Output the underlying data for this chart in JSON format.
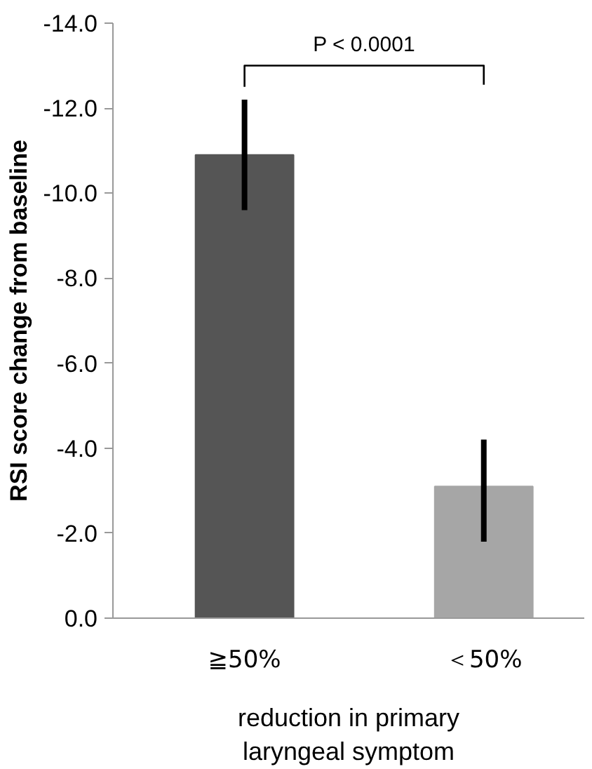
{
  "chart_data": {
    "type": "bar",
    "ylabel": "RSI score change from baseline",
    "xlabel": "reduction in primary\nlaryngeal symptom",
    "categories": [
      "≧50%",
      "＜50%"
    ],
    "values": [
      -10.9,
      -3.1
    ],
    "colors": [
      "#555555",
      "#a6a6a6"
    ],
    "errors": [
      [
        -12.2,
        -9.6
      ],
      [
        -4.2,
        -1.8
      ]
    ],
    "ylim": [
      0,
      -14
    ],
    "yticks": [
      {
        "value": 0,
        "label": "0.0"
      },
      {
        "value": -2,
        "label": "-2.0"
      },
      {
        "value": -4,
        "label": "-4.0"
      },
      {
        "value": -6,
        "label": "-6.0"
      },
      {
        "value": -8,
        "label": "-8.0"
      },
      {
        "value": -10,
        "label": "-10.0"
      },
      {
        "value": -12,
        "label": "-12.0"
      },
      {
        "value": -14,
        "label": "-14.0"
      }
    ],
    "annotations": [
      "P < 0.0001"
    ],
    "grid": false
  }
}
